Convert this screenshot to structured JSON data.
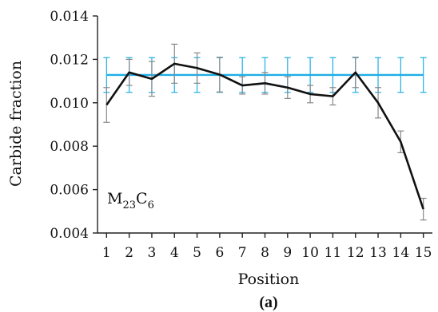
{
  "chart_data": {
    "type": "line",
    "xlabel": "Position",
    "ylabel": "Carbide fraction",
    "annotation": {
      "base1": "M",
      "sub1": "23",
      "base2": "C",
      "sub2": "6"
    },
    "panel_label": "(a)",
    "x": [
      1,
      2,
      3,
      4,
      5,
      6,
      7,
      8,
      9,
      10,
      11,
      12,
      13,
      14,
      15
    ],
    "xlim": [
      0.6,
      15.4
    ],
    "ylim": [
      0.004,
      0.014
    ],
    "yticks": [
      "0.004",
      "0.006",
      "0.008",
      "0.010",
      "0.012",
      "0.014"
    ],
    "series": [
      {
        "color": "#111111",
        "values": [
          0.0099,
          0.0114,
          0.0111,
          0.0118,
          0.0116,
          0.0113,
          0.0108,
          0.0109,
          0.0107,
          0.0104,
          0.0103,
          0.0114,
          0.01,
          0.0082,
          0.0051
        ],
        "errors": [
          0.0008,
          0.0006,
          0.0008,
          0.0009,
          0.0007,
          0.0008,
          0.0004,
          0.0005,
          0.0005,
          0.0004,
          0.0004,
          0.0007,
          0.0007,
          0.0005,
          0.0005
        ]
      },
      {
        "color": "#1eaee6",
        "values": [
          0.01128,
          0.01128,
          0.01128,
          0.01128,
          0.01128,
          0.01128,
          0.01128,
          0.01128,
          0.01128,
          0.01128,
          0.01128,
          0.01128,
          0.01128,
          0.01128,
          0.01128
        ],
        "errors": [
          0.0008,
          0.0008,
          0.0008,
          0.0008,
          0.0008,
          0.0008,
          0.0008,
          0.0008,
          0.0008,
          0.0008,
          0.0008,
          0.0008,
          0.0008,
          0.0008,
          0.0008
        ]
      }
    ]
  }
}
